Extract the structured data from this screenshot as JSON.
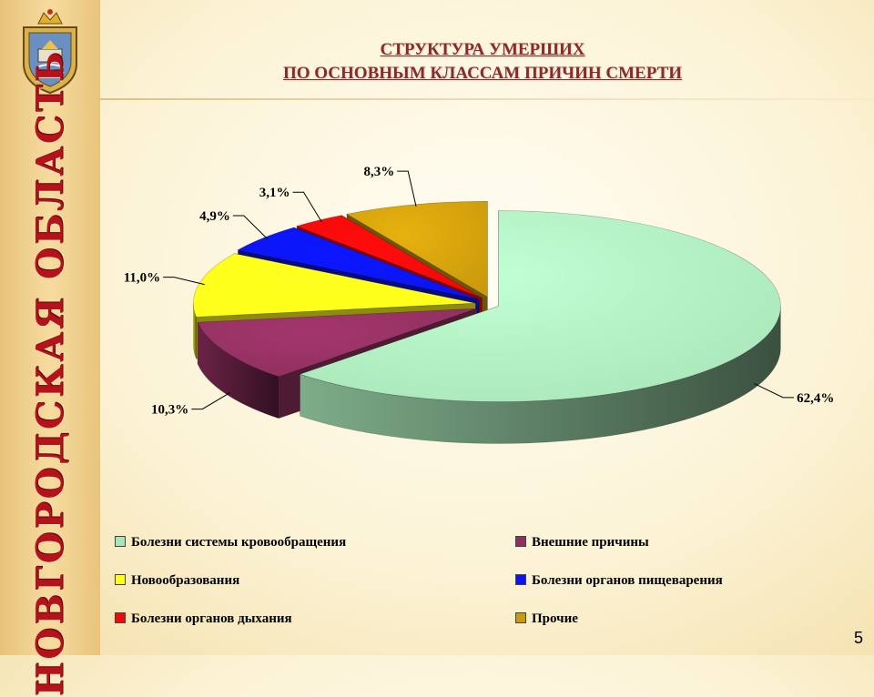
{
  "slide": {
    "title_line1": "СТРУКТУРА  УМЕРШИХ",
    "title_line2": "ПО ОСНОВНЫМ КЛАССАМ ПРИЧИН СМЕРТИ",
    "region_name": "НОВГОРОДСКАЯ ОБЛАСТЬ",
    "page_number": "5"
  },
  "colors": {
    "accent_red": "#b5121b",
    "title": "#8a2a2a"
  },
  "chart_data": {
    "type": "pie",
    "style": "3d-exploded",
    "title": "СТРУКТУРА УМЕРШИХ ПО ОСНОВНЫМ КЛАССАМ ПРИЧИН СМЕРТИ",
    "legend_position": "bottom",
    "slices": [
      {
        "name": "Болезни системы кровообращения",
        "value": 62.4,
        "label": "62,4%",
        "color": "#a8e6b8"
      },
      {
        "name": "Внешние причины",
        "value": 10.3,
        "label": "10,3%",
        "color": "#8e2f5e"
      },
      {
        "name": "Новообразования",
        "value": 11.0,
        "label": "11,0%",
        "color": "#ffff1a"
      },
      {
        "name": "Болезни органов пищеварения",
        "value": 4.9,
        "label": "4,9%",
        "color": "#0a14f0"
      },
      {
        "name": "Болезни органов дыхания",
        "value": 3.1,
        "label": "3,1%",
        "color": "#f00a0a"
      },
      {
        "name": "Прочие",
        "value": 8.3,
        "label": "8,3%",
        "color": "#c99a0c"
      }
    ]
  }
}
